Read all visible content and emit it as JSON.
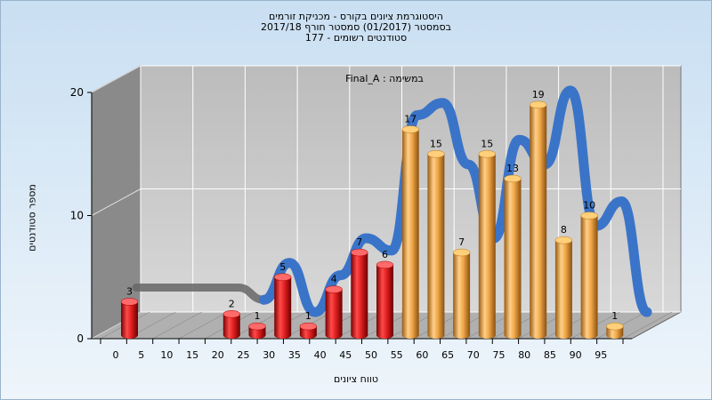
{
  "chart_data": {
    "type": "bar",
    "title_lines": [
      "היסטוגרמת ציונים בקורס - מכניקת זורמים",
      "בסמסטר  (01/2017)  סמסטר חורף 2017/18",
      "סטודנטים רשומים - 177"
    ],
    "xlabel": "טווח ציונים",
    "ylabel": "מספר סטודנטים",
    "ylim": [
      0,
      20
    ],
    "yticks": [
      0,
      10,
      20
    ],
    "xticks": [
      "0",
      "5",
      "10",
      "15",
      "20",
      "25",
      "30",
      "35",
      "40",
      "45",
      "50",
      "55",
      "60",
      "65",
      "70",
      "75",
      "80",
      "85",
      "90",
      "95"
    ],
    "series": [
      {
        "name": "Final_A : במשימה",
        "values": [
          3,
          0,
          0,
          0,
          2,
          1,
          5,
          1,
          4,
          7,
          6,
          17,
          15,
          7,
          15,
          13,
          19,
          8,
          10,
          1
        ]
      }
    ],
    "trend_line": [
      3,
      3,
      3,
      3,
      3,
      2,
      5,
      1,
      4,
      7,
      6,
      17,
      18,
      13,
      7,
      15,
      13,
      19,
      8,
      10,
      1
    ],
    "colors": {
      "fail_bar": "#e02020",
      "pass_bar": "#f0a848",
      "trend_line": "#3a74c8",
      "trend_line_shadow": "#666666",
      "back_wall": "#c4c4c4",
      "side_wall": "#8a8a8a",
      "floor": "#b0b0b0"
    },
    "pass_threshold": 55,
    "grid": true,
    "legend_position": "top"
  }
}
